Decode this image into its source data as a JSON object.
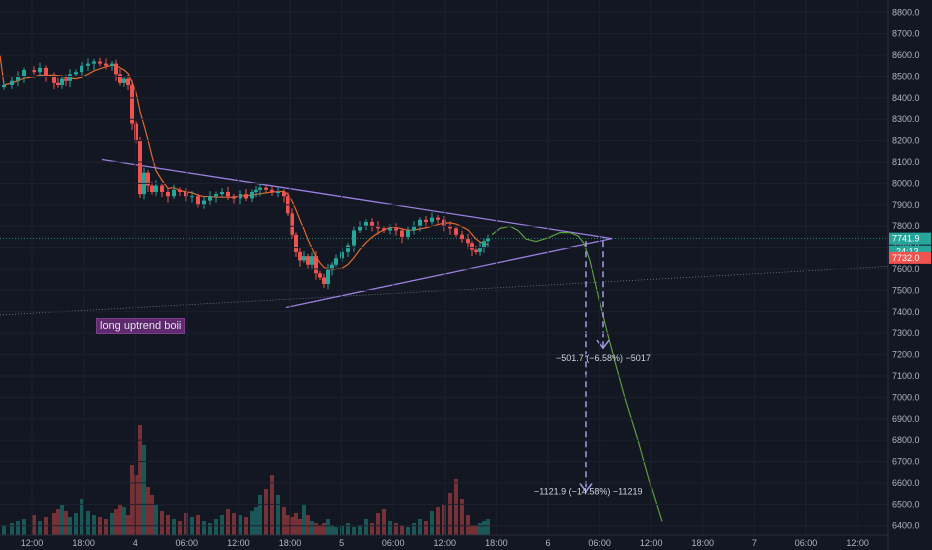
{
  "chart_data": {
    "type": "candlestick",
    "price_ticks": [
      "8800.0",
      "8700.0",
      "8600.0",
      "8500.0",
      "8400.0",
      "8300.0",
      "8200.0",
      "8100.0",
      "8000.0",
      "7900.0",
      "7800.0",
      "7700.0",
      "7600.0",
      "7500.0",
      "7400.0",
      "7300.0",
      "7200.0",
      "7100.0",
      "7000.0",
      "6900.0",
      "6800.0",
      "6700.0",
      "6600.0",
      "6500.0",
      "6400.0"
    ],
    "price_range": [
      6380,
      8820
    ],
    "time_ticks": [
      "12:00",
      "18:00",
      "4",
      "06:00",
      "12:00",
      "18:00",
      "5",
      "06:00",
      "12:00",
      "18:00",
      "6",
      "06:00",
      "12:00",
      "18:00",
      "7",
      "06:00",
      "12:00"
    ],
    "last_price": {
      "value": 7741.9,
      "label": "7741.9",
      "countdown": "24:13",
      "color": "#26a69a"
    },
    "low_marker": {
      "value": 7732.0,
      "label": "7732.0",
      "color": "#ef5350"
    },
    "colors": {
      "up": "#26a69a",
      "down": "#ef5350",
      "ma": "#e0692e",
      "triangle": "#9c7fe0",
      "projection": "#5b9e3c",
      "trend": "#7a7f8f"
    },
    "candles_anchor": [
      [
        0,
        8460
      ],
      [
        8,
        8480
      ],
      [
        14,
        8500
      ],
      [
        20,
        8530
      ],
      [
        30,
        8520
      ],
      [
        36,
        8540
      ],
      [
        42,
        8500
      ],
      [
        50,
        8470
      ],
      [
        54,
        8460
      ],
      [
        58,
        8490
      ],
      [
        62,
        8480
      ],
      [
        66,
        8510
      ],
      [
        72,
        8520
      ],
      [
        78,
        8550
      ],
      [
        84,
        8560
      ],
      [
        90,
        8570
      ],
      [
        96,
        8560
      ],
      [
        102,
        8550
      ],
      [
        108,
        8560
      ],
      [
        112,
        8510
      ],
      [
        116,
        8470
      ],
      [
        120,
        8490
      ],
      [
        124,
        8460
      ],
      [
        128,
        8280
      ],
      [
        132,
        8200
      ],
      [
        136,
        7950
      ],
      [
        140,
        8050
      ],
      [
        144,
        7990
      ],
      [
        148,
        7960
      ],
      [
        152,
        7990
      ],
      [
        158,
        7960
      ],
      [
        164,
        7940
      ],
      [
        170,
        7970
      ],
      [
        176,
        7960
      ],
      [
        182,
        7940
      ],
      [
        188,
        7940
      ],
      [
        194,
        7900
      ],
      [
        200,
        7920
      ],
      [
        206,
        7940
      ],
      [
        212,
        7950
      ],
      [
        218,
        7960
      ],
      [
        224,
        7940
      ],
      [
        230,
        7930
      ],
      [
        236,
        7950
      ],
      [
        242,
        7930
      ],
      [
        248,
        7960
      ],
      [
        252,
        7970
      ],
      [
        256,
        7980
      ],
      [
        262,
        7970
      ],
      [
        268,
        7960
      ],
      [
        274,
        7960
      ],
      [
        280,
        7940
      ],
      [
        284,
        7860
      ],
      [
        288,
        7760
      ],
      [
        292,
        7680
      ],
      [
        296,
        7640
      ],
      [
        300,
        7660
      ],
      [
        304,
        7620
      ],
      [
        308,
        7660
      ],
      [
        312,
        7580
      ],
      [
        316,
        7560
      ],
      [
        320,
        7530
      ],
      [
        324,
        7600
      ],
      [
        328,
        7620
      ],
      [
        332,
        7650
      ],
      [
        338,
        7680
      ],
      [
        344,
        7710
      ],
      [
        350,
        7780
      ],
      [
        356,
        7800
      ],
      [
        362,
        7820
      ],
      [
        368,
        7800
      ],
      [
        374,
        7790
      ],
      [
        380,
        7780
      ],
      [
        386,
        7790
      ],
      [
        392,
        7780
      ],
      [
        398,
        7750
      ],
      [
        404,
        7780
      ],
      [
        410,
        7800
      ],
      [
        416,
        7830
      ],
      [
        422,
        7820
      ],
      [
        428,
        7840
      ],
      [
        434,
        7830
      ],
      [
        440,
        7800
      ],
      [
        446,
        7790
      ],
      [
        452,
        7760
      ],
      [
        458,
        7740
      ],
      [
        464,
        7720
      ],
      [
        468,
        7690
      ],
      [
        472,
        7680
      ],
      [
        476,
        7700
      ],
      [
        480,
        7730
      ],
      [
        484,
        7742
      ]
    ],
    "volumes": [
      10,
      12,
      14,
      16,
      20,
      14,
      18,
      22,
      26,
      30,
      24,
      18,
      22,
      36,
      24,
      20,
      18,
      16,
      22,
      26,
      30,
      28,
      20,
      70,
      60,
      110,
      90,
      48,
      40,
      30,
      24,
      20,
      16,
      14,
      22,
      18,
      20,
      14,
      12,
      16,
      20,
      26,
      22,
      20,
      18,
      24,
      28,
      40,
      46,
      60,
      40,
      28,
      20,
      18,
      22,
      16,
      30,
      20,
      14,
      12,
      10,
      12,
      16,
      10,
      8,
      10,
      12,
      8,
      10,
      16,
      12,
      22,
      26,
      14,
      12,
      10,
      8,
      12,
      16,
      14,
      24,
      28,
      30,
      42,
      56,
      36,
      20,
      10
    ],
    "annotations": {
      "note": "long uptrend boii",
      "small_target": "−501.7 (−6.58%) −5017",
      "large_target": "−1121.9 (−14.58%) −11219"
    }
  }
}
